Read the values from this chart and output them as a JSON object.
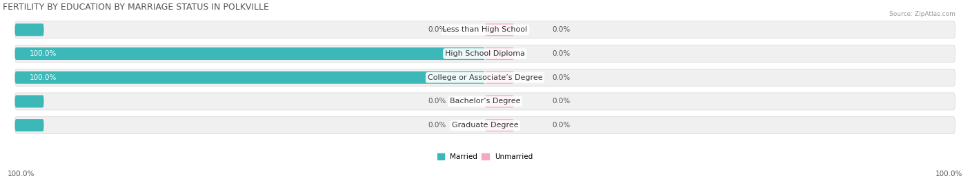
{
  "title": "FERTILITY BY EDUCATION BY MARRIAGE STATUS IN POLKVILLE",
  "source": "Source: ZipAtlas.com",
  "categories": [
    "Less than High School",
    "High School Diploma",
    "College or Associate’s Degree",
    "Bachelor’s Degree",
    "Graduate Degree"
  ],
  "married": [
    0.0,
    100.0,
    100.0,
    0.0,
    0.0
  ],
  "unmarried": [
    0.0,
    0.0,
    0.0,
    0.0,
    0.0
  ],
  "married_color": "#3cb8b8",
  "unmarried_color": "#f5a8c0",
  "row_bg_even": "#f2f2f2",
  "row_bg_odd": "#ebebeb",
  "title_fontsize": 9,
  "label_fontsize": 8,
  "val_fontsize": 7.5,
  "tick_fontsize": 7.5,
  "x_left_label": "100.0%",
  "x_right_label": "100.0%",
  "legend_married": "Married",
  "legend_unmarried": "Unmarried"
}
